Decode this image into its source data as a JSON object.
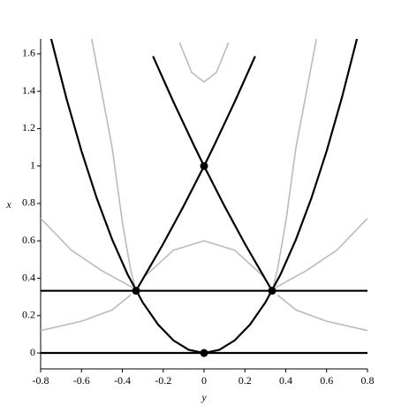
{
  "chart_data": {
    "type": "line",
    "xlabel": "y",
    "ylabel": "x",
    "xlim": [
      -0.8,
      0.8
    ],
    "ylim": [
      -0.085,
      1.68
    ],
    "xticks": [
      -0.8,
      -0.6,
      -0.4,
      -0.2,
      0,
      0.2,
      0.4,
      0.6,
      0.8
    ],
    "yticks": [
      0,
      0.2,
      0.4,
      0.6,
      0.8,
      1,
      1.2,
      1.4,
      1.6
    ],
    "series": [
      {
        "color": "#bbbbbb",
        "x": [
          -0.12,
          -0.06,
          0,
          0.06,
          0.12
        ],
        "values": [
          1.66,
          1.5,
          1.45,
          1.5,
          1.66
        ]
      },
      {
        "color": "#bbbbbb",
        "x": [
          -0.3,
          -0.15,
          0,
          0.15,
          0.3
        ],
        "values": [
          0.4,
          0.55,
          0.6,
          0.55,
          0.4
        ]
      },
      {
        "color": "#bbbbbb",
        "x": [
          -0.55,
          -0.45,
          -0.4,
          -0.36,
          -0.34
        ],
        "values": [
          1.68,
          1.1,
          0.7,
          0.45,
          0.36
        ]
      },
      {
        "color": "#bbbbbb",
        "x": [
          0.55,
          0.45,
          0.4,
          0.36,
          0.34
        ],
        "values": [
          1.68,
          1.1,
          0.7,
          0.45,
          0.36
        ]
      },
      {
        "color": "#bbbbbb",
        "x": [
          -0.8,
          -0.6,
          -0.45,
          -0.36
        ],
        "values": [
          0.12,
          0.17,
          0.23,
          0.31
        ]
      },
      {
        "color": "#bbbbbb",
        "x": [
          0.8,
          0.6,
          0.45,
          0.36
        ],
        "values": [
          0.12,
          0.17,
          0.23,
          0.31
        ]
      },
      {
        "color": "#bbbbbb",
        "x": [
          -0.8,
          -0.65,
          -0.5,
          -0.4,
          -0.35
        ],
        "values": [
          0.72,
          0.55,
          0.44,
          0.38,
          0.35
        ]
      },
      {
        "color": "#bbbbbb",
        "x": [
          0.8,
          0.65,
          0.5,
          0.4,
          0.35
        ],
        "values": [
          0.72,
          0.55,
          0.44,
          0.38,
          0.35
        ]
      },
      {
        "color": "#000000",
        "x": [
          -0.75,
          -0.675,
          -0.6,
          -0.525,
          -0.45,
          -0.375,
          -0.3,
          -0.225,
          -0.15,
          -0.075,
          0,
          0.075,
          0.15,
          0.225,
          0.3,
          0.375,
          0.45,
          0.525,
          0.6,
          0.675,
          0.75
        ],
        "values": [
          1.6875,
          1.3669,
          1.08,
          0.8269,
          0.6075,
          0.4219,
          0.27,
          0.1519,
          0.0675,
          0.0169,
          0,
          0.0169,
          0.0675,
          0.1519,
          0.27,
          0.4219,
          0.6075,
          0.8269,
          1.08,
          1.3669,
          1.6875
        ]
      },
      {
        "color": "#000000",
        "x": [
          -0.25,
          -0.15,
          -0.05,
          0,
          0.1,
          0.2,
          0.333
        ],
        "values": [
          1.5875,
          1.3435,
          1.1115,
          1,
          0.786,
          0.584,
          0.333
        ]
      },
      {
        "color": "#000000",
        "x": [
          0.25,
          0.15,
          0.05,
          0,
          -0.1,
          -0.2,
          -0.333
        ],
        "values": [
          1.5875,
          1.3435,
          1.1115,
          1,
          0.786,
          0.584,
          0.333
        ]
      },
      {
        "color": "#000000",
        "x": [
          -0.8,
          0.8
        ],
        "values": [
          0,
          0
        ]
      },
      {
        "color": "#000000",
        "x": [
          -0.8,
          0.8
        ],
        "values": [
          0.333,
          0.333
        ]
      }
    ],
    "points": {
      "color": "#000000",
      "x": [
        0,
        0,
        -0.333,
        0.333
      ],
      "values": [
        0,
        1,
        0.333,
        0.333
      ]
    }
  }
}
